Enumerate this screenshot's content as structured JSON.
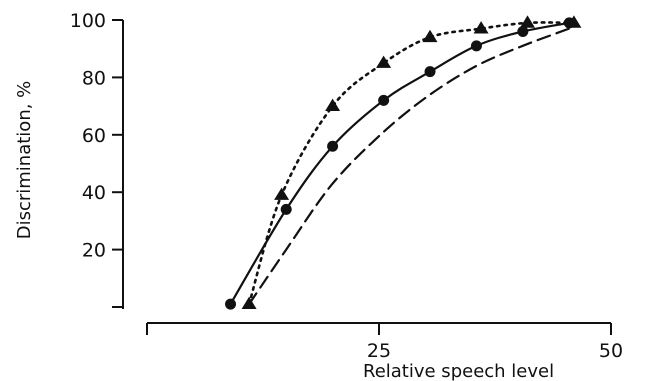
{
  "chart_data": {
    "type": "line",
    "title": "",
    "xlabel": "Relative speech level",
    "ylabel": "Discrimination, %",
    "xlim": [
      0,
      50
    ],
    "ylim": [
      0,
      100
    ],
    "x_ticks": [
      {
        "value": 0,
        "label": ""
      },
      {
        "value": 25,
        "label": "25"
      },
      {
        "value": 50,
        "label": "50"
      }
    ],
    "y_ticks": [
      {
        "value": 0,
        "label": ""
      },
      {
        "value": 20,
        "label": "20"
      },
      {
        "value": 40,
        "label": "40"
      },
      {
        "value": 60,
        "label": "60"
      },
      {
        "value": 80,
        "label": "80"
      },
      {
        "value": 100,
        "label": "100"
      }
    ],
    "grid": false,
    "legend": "none",
    "series": [
      {
        "line_style": "dotted",
        "marker": "triangle",
        "color": "#111111",
        "points": [
          [
            11,
            1
          ],
          [
            14.5,
            39
          ],
          [
            20,
            70
          ],
          [
            25.5,
            85
          ],
          [
            30.5,
            94
          ],
          [
            36,
            97
          ],
          [
            41,
            99
          ],
          [
            46,
            99
          ]
        ]
      },
      {
        "line_style": "solid",
        "marker": "circle",
        "color": "#111111",
        "points": [
          [
            9,
            1
          ],
          [
            15,
            34
          ],
          [
            20,
            56
          ],
          [
            25.5,
            72
          ],
          [
            30.5,
            82
          ],
          [
            35.5,
            91
          ],
          [
            40.5,
            96
          ],
          [
            45.5,
            99
          ]
        ]
      },
      {
        "line_style": "dashed",
        "marker": "none",
        "color": "#111111",
        "points": [
          [
            11,
            1
          ],
          [
            15,
            20
          ],
          [
            20,
            43
          ],
          [
            25.5,
            61
          ],
          [
            30.5,
            74
          ],
          [
            35.5,
            84
          ],
          [
            40.5,
            91
          ],
          [
            45.5,
            97
          ]
        ]
      }
    ]
  }
}
